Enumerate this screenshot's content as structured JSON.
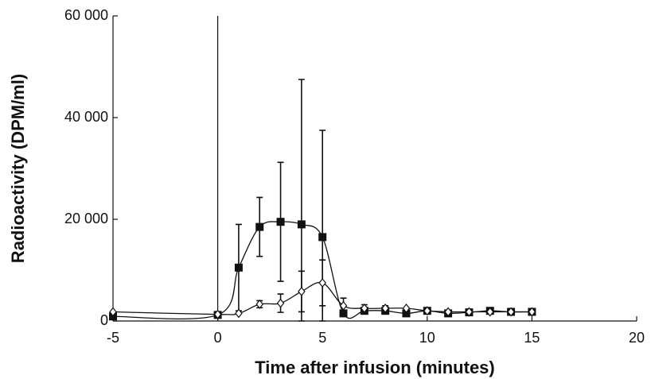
{
  "chart_data": {
    "type": "line",
    "x_label": "Time after infusion (minutes)",
    "y_label": "Radioactivity (DPM/ml)",
    "x": [
      -5,
      0,
      1,
      2,
      3,
      4,
      5,
      6,
      7,
      8,
      9,
      10,
      11,
      12,
      13,
      14,
      15
    ],
    "series": [
      {
        "marker": "square",
        "color": "#111111",
        "values": [
          900,
          1200,
          10500,
          18500,
          19500,
          19000,
          16500,
          1500,
          2000,
          2000,
          1500,
          2000,
          1500,
          1700,
          2000,
          1800,
          1800
        ],
        "errors": [
          null,
          null,
          8500,
          5800,
          11700,
          28500,
          21000,
          null,
          null,
          null,
          null,
          null,
          null,
          null,
          null,
          null,
          null
        ]
      },
      {
        "marker": "diamond",
        "color": "#111111",
        "values": [
          1800,
          1300,
          1500,
          3300,
          3500,
          5800,
          7500,
          3000,
          2500,
          2500,
          2500,
          2000,
          1800,
          1800,
          1800,
          1800,
          1800
        ],
        "errors": [
          null,
          null,
          null,
          700,
          1800,
          4000,
          4500,
          1500,
          700,
          500,
          null,
          null,
          null,
          null,
          null,
          null,
          null
        ]
      }
    ],
    "xlim": [
      -5,
      20
    ],
    "xticks": [
      -5,
      0,
      5,
      10,
      15,
      20
    ],
    "ylim": [
      0,
      60000
    ],
    "yticks": [
      0,
      {
        "value": 20000,
        "label": "20 000"
      },
      {
        "value": 40000,
        "label": "40 000"
      },
      {
        "value": 60000,
        "label": "60 000"
      }
    ],
    "vlines": [
      0
    ]
  }
}
